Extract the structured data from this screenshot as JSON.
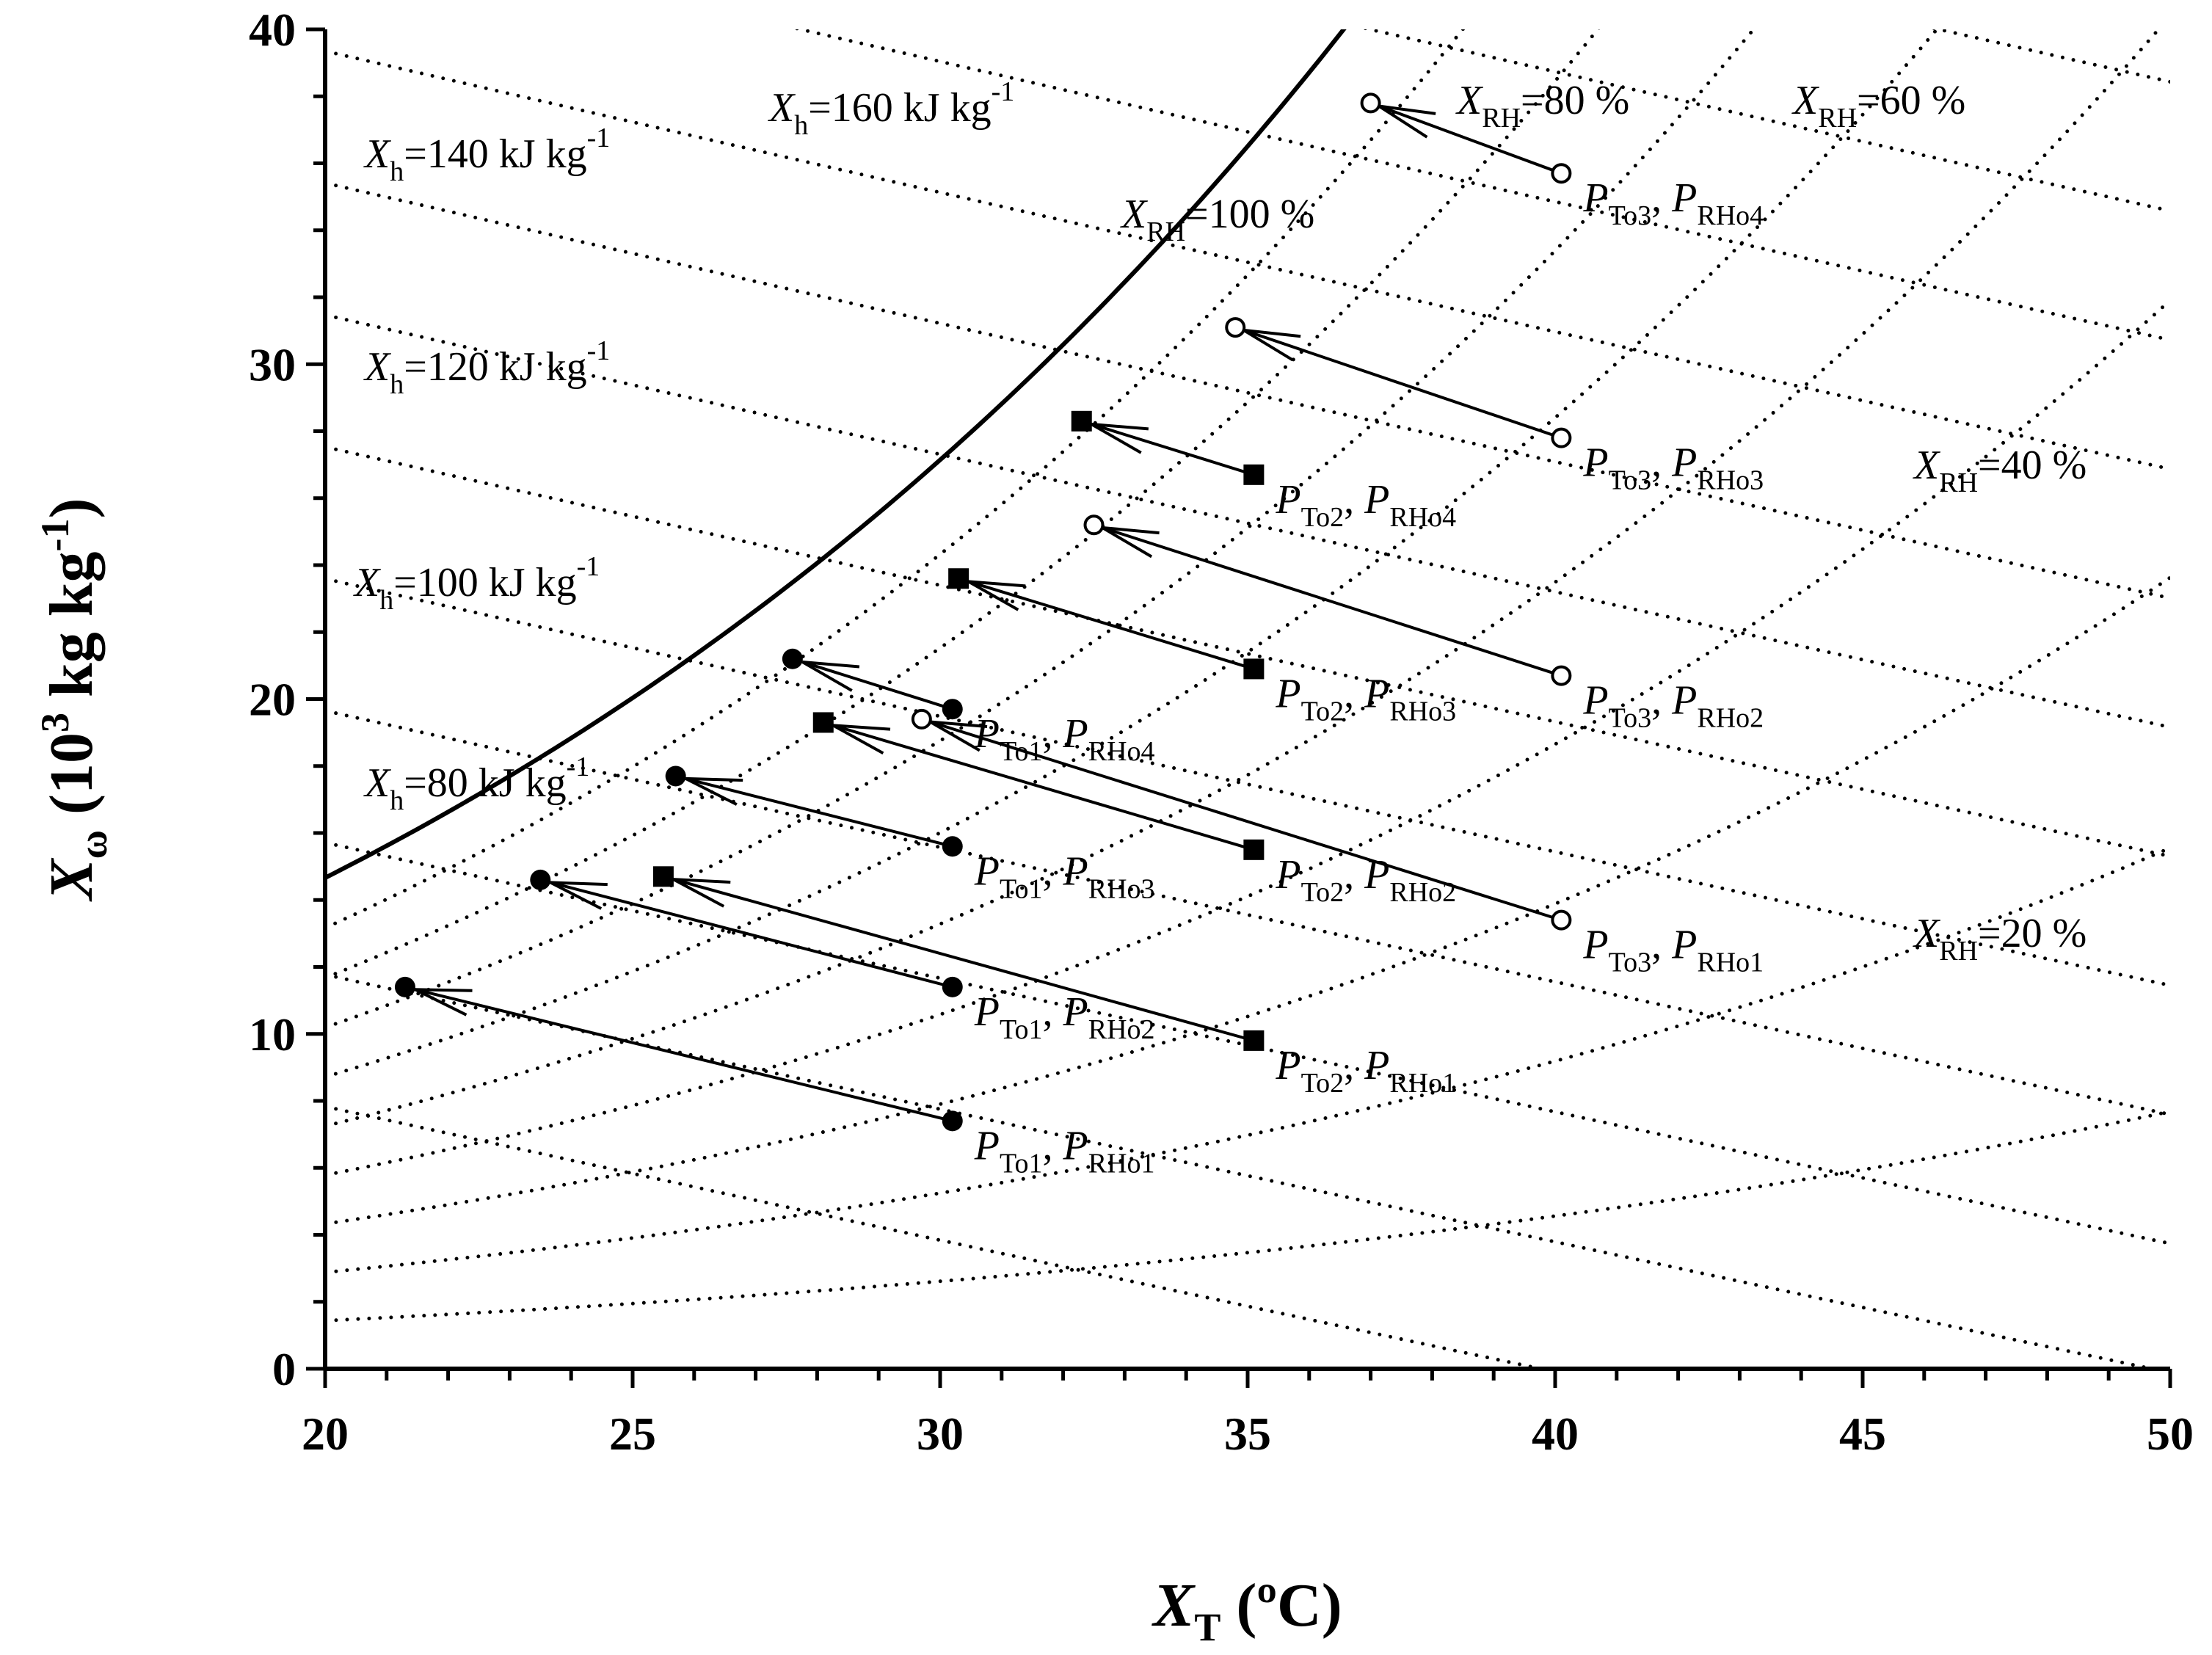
{
  "chart_data": {
    "type": "scatter",
    "title": "",
    "x_axis": {
      "range": [
        20,
        50
      ],
      "ticks": [
        "20",
        "25",
        "30",
        "35",
        "40",
        "45",
        "50"
      ]
    },
    "y_axis": {
      "range": [
        0,
        40
      ],
      "ticks": [
        "0",
        "10",
        "20",
        "30",
        "40"
      ]
    },
    "xlabel": {
      "symbol": "X",
      "sub": "T",
      "unit": " (ºC)"
    },
    "ylabel": {
      "symbol": "X",
      "sub": "ω",
      "mid": " (10",
      "sup1": "3",
      "mid2": " kg kg",
      "sup2": "-1",
      "end": ")"
    },
    "saturation_curve": {
      "label": "X_RH=100 %"
    },
    "enthalpy_lines": [
      {
        "value": 80,
        "text_sym": "X",
        "text_sub": "h",
        "text": "=80 kJ kg",
        "sup": "-1"
      },
      {
        "value": 100,
        "text_sym": "X",
        "text_sub": "h",
        "text": "=100 kJ kg",
        "sup": "-1"
      },
      {
        "value": 120,
        "text_sym": "X",
        "text_sub": "h",
        "text": "=120 kJ kg",
        "sup": "-1"
      },
      {
        "value": 140,
        "text_sym": "X",
        "text_sub": "h",
        "text": "=140 kJ kg",
        "sup": "-1"
      },
      {
        "value": 160,
        "text_sym": "X",
        "text_sub": "h",
        "text": "=160 kJ kg",
        "sup": "-1"
      }
    ],
    "rh_labels": [
      {
        "sym": "X",
        "sub": "RH",
        "text": "=100 %"
      },
      {
        "sym": "X",
        "sub": "RH",
        "text": "=80 %"
      },
      {
        "sym": "X",
        "sub": "RH",
        "text": "=60 %"
      },
      {
        "sym": "X",
        "sub": "RH",
        "text": "=40 %"
      },
      {
        "sym": "X",
        "sub": "RH",
        "text": "=20 %"
      }
    ],
    "series": [
      {
        "name": "To1",
        "marker": "filled-circle",
        "arrows": [
          {
            "from": [
              30.2,
              7.4
            ],
            "to": [
              21.3,
              11.4
            ],
            "label": {
              "a": "To1",
              "b": "RHo1"
            }
          },
          {
            "from": [
              30.2,
              11.4
            ],
            "to": [
              23.5,
              14.6
            ],
            "label": {
              "a": "To1",
              "b": "RHo2"
            }
          },
          {
            "from": [
              30.2,
              15.6
            ],
            "to": [
              25.7,
              17.7
            ],
            "label": {
              "a": "To1",
              "b": "RHo3"
            }
          },
          {
            "from": [
              30.2,
              19.7
            ],
            "to": [
              27.6,
              21.2
            ],
            "label": {
              "a": "To1",
              "b": "RHo4"
            }
          }
        ]
      },
      {
        "name": "To2",
        "marker": "filled-square",
        "arrows": [
          {
            "from": [
              35.1,
              9.8
            ],
            "to": [
              25.5,
              14.7
            ],
            "label": {
              "a": "To2",
              "b": "RHo1"
            }
          },
          {
            "from": [
              35.1,
              15.5
            ],
            "to": [
              28.1,
              19.3
            ],
            "label": {
              "a": "To2",
              "b": "RHo2"
            }
          },
          {
            "from": [
              35.1,
              20.9
            ],
            "to": [
              30.3,
              23.6
            ],
            "label": {
              "a": "To2",
              "b": "RHo3"
            }
          },
          {
            "from": [
              35.1,
              26.7
            ],
            "to": [
              32.3,
              28.3
            ],
            "label": {
              "a": "To2",
              "b": "RHo4"
            }
          }
        ]
      },
      {
        "name": "To3",
        "marker": "open-circle",
        "arrows": [
          {
            "from": [
              40.1,
              13.4
            ],
            "to": [
              29.7,
              19.4
            ],
            "label": {
              "a": "To3",
              "b": "RHo1"
            }
          },
          {
            "from": [
              40.1,
              20.7
            ],
            "to": [
              32.5,
              25.2
            ],
            "label": {
              "a": "To3",
              "b": "RHo2"
            }
          },
          {
            "from": [
              40.1,
              27.8
            ],
            "to": [
              34.8,
              31.1
            ],
            "label": {
              "a": "To3",
              "b": "RHo3"
            }
          },
          {
            "from": [
              40.1,
              35.7
            ],
            "to": [
              37.0,
              37.8
            ],
            "label": {
              "a": "To3",
              "b": "RHo4"
            }
          }
        ]
      }
    ]
  }
}
